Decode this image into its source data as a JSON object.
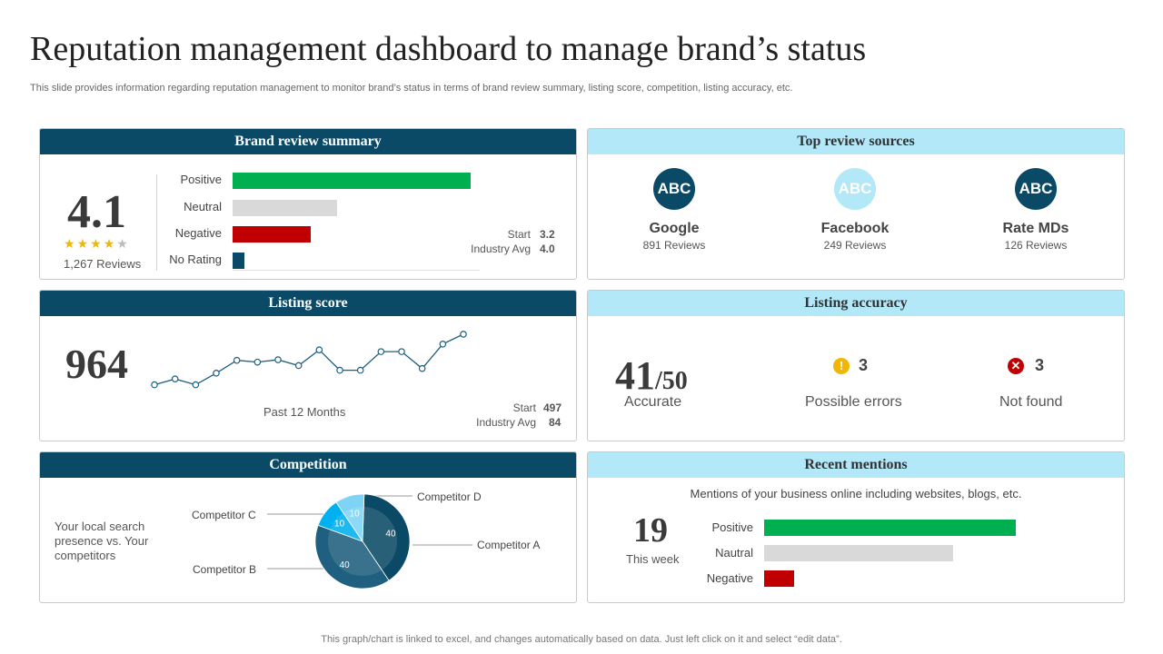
{
  "page": {
    "title": "Reputation management dashboard to manage brand’s status",
    "subtitle": "This slide provides information regarding reputation management to monitor brand’s status in terms of brand review summary, listing score, competition, listing accuracy, etc.",
    "footer": "This graph/chart is linked to excel, and changes automatically based on data. Just left click on it and select “edit data”."
  },
  "brand_review": {
    "title": "Brand review summary",
    "rating": "4.1",
    "stars_filled": 4,
    "stars_total": 5,
    "reviews": "1,267 Reviews",
    "bars": [
      {
        "label": "Positive",
        "value": 100,
        "color": "#00b050"
      },
      {
        "label": "Neutral",
        "value": 44,
        "color": "#d9d9d9"
      },
      {
        "label": "Negative",
        "value": 33,
        "color": "#c00000"
      },
      {
        "label": "No Rating",
        "value": 5,
        "color": "#0b4a66"
      }
    ],
    "start_label": "Start",
    "start_value": "3.2",
    "industry_label": "Industry Avg",
    "industry_value": "4.0"
  },
  "top_sources": {
    "title": "Top review sources",
    "items": [
      {
        "abbr": "ABC",
        "name": "Google",
        "count": "891 Reviews",
        "color": "#0b4a66"
      },
      {
        "abbr": "ABC",
        "name": "Facebook",
        "count": "249 Reviews",
        "color": "#b3e8f9"
      },
      {
        "abbr": "ABC",
        "name": "Rate MDs",
        "count": "126 Reviews",
        "color": "#0b4a66"
      }
    ]
  },
  "listing_score": {
    "title": "Listing score",
    "score": "964",
    "caption": "Past 12 Months",
    "start_label": "Start",
    "start_value": "497",
    "industry_label": "Industry Avg",
    "industry_value": "84"
  },
  "listing_accuracy": {
    "title": "Listing accuracy",
    "accurate_value": "41",
    "accurate_total": "/50",
    "accurate_label": "Accurate",
    "possible_errors_count": "3",
    "possible_errors_label": "Possible errors",
    "not_found_count": "3",
    "not_found_label": "Not found"
  },
  "competition": {
    "title": "Competition",
    "description": "Your local search presence vs. Your competitors",
    "slice_labels": {
      "a": "Competitor A",
      "b": "Competitor B",
      "c": "Competitor C",
      "d": "Competitor D"
    }
  },
  "recent_mentions": {
    "title": "Recent mentions",
    "description": "Mentions of your business online including websites, blogs, etc.",
    "count": "19",
    "period": "This week",
    "bars": [
      {
        "label": "Positive",
        "value": 100,
        "color": "#00b050"
      },
      {
        "label": "Nautral",
        "value": 75,
        "color": "#d9d9d9"
      },
      {
        "label": "Negative",
        "value": 12,
        "color": "#c00000"
      }
    ]
  },
  "chart_data": [
    {
      "type": "bar",
      "orientation": "horizontal",
      "categories": [
        "Positive",
        "Neutral",
        "Negative",
        "No Rating"
      ],
      "values": [
        100,
        44,
        33,
        5
      ]
    },
    {
      "type": "line",
      "x": [
        1,
        2,
        3,
        4,
        5,
        6,
        7,
        8,
        9,
        10,
        11,
        12,
        13,
        14,
        15,
        16
      ],
      "values": [
        10,
        20,
        10,
        30,
        52,
        49,
        53,
        43,
        70,
        35,
        35,
        67,
        67,
        38,
        80,
        97
      ],
      "ylim": [
        0,
        100
      ]
    },
    {
      "type": "pie",
      "categories": [
        "Competitor A",
        "Competitor B",
        "Competitor C",
        "Competitor D"
      ],
      "values": [
        40,
        40,
        10,
        10
      ],
      "colors": [
        "#0b4a66",
        "#1f5f7f",
        "#00b0f0",
        "#7fd4f5"
      ]
    },
    {
      "type": "bar",
      "orientation": "horizontal",
      "categories": [
        "Positive",
        "Nautral",
        "Negative"
      ],
      "values": [
        100,
        75,
        12
      ]
    }
  ]
}
